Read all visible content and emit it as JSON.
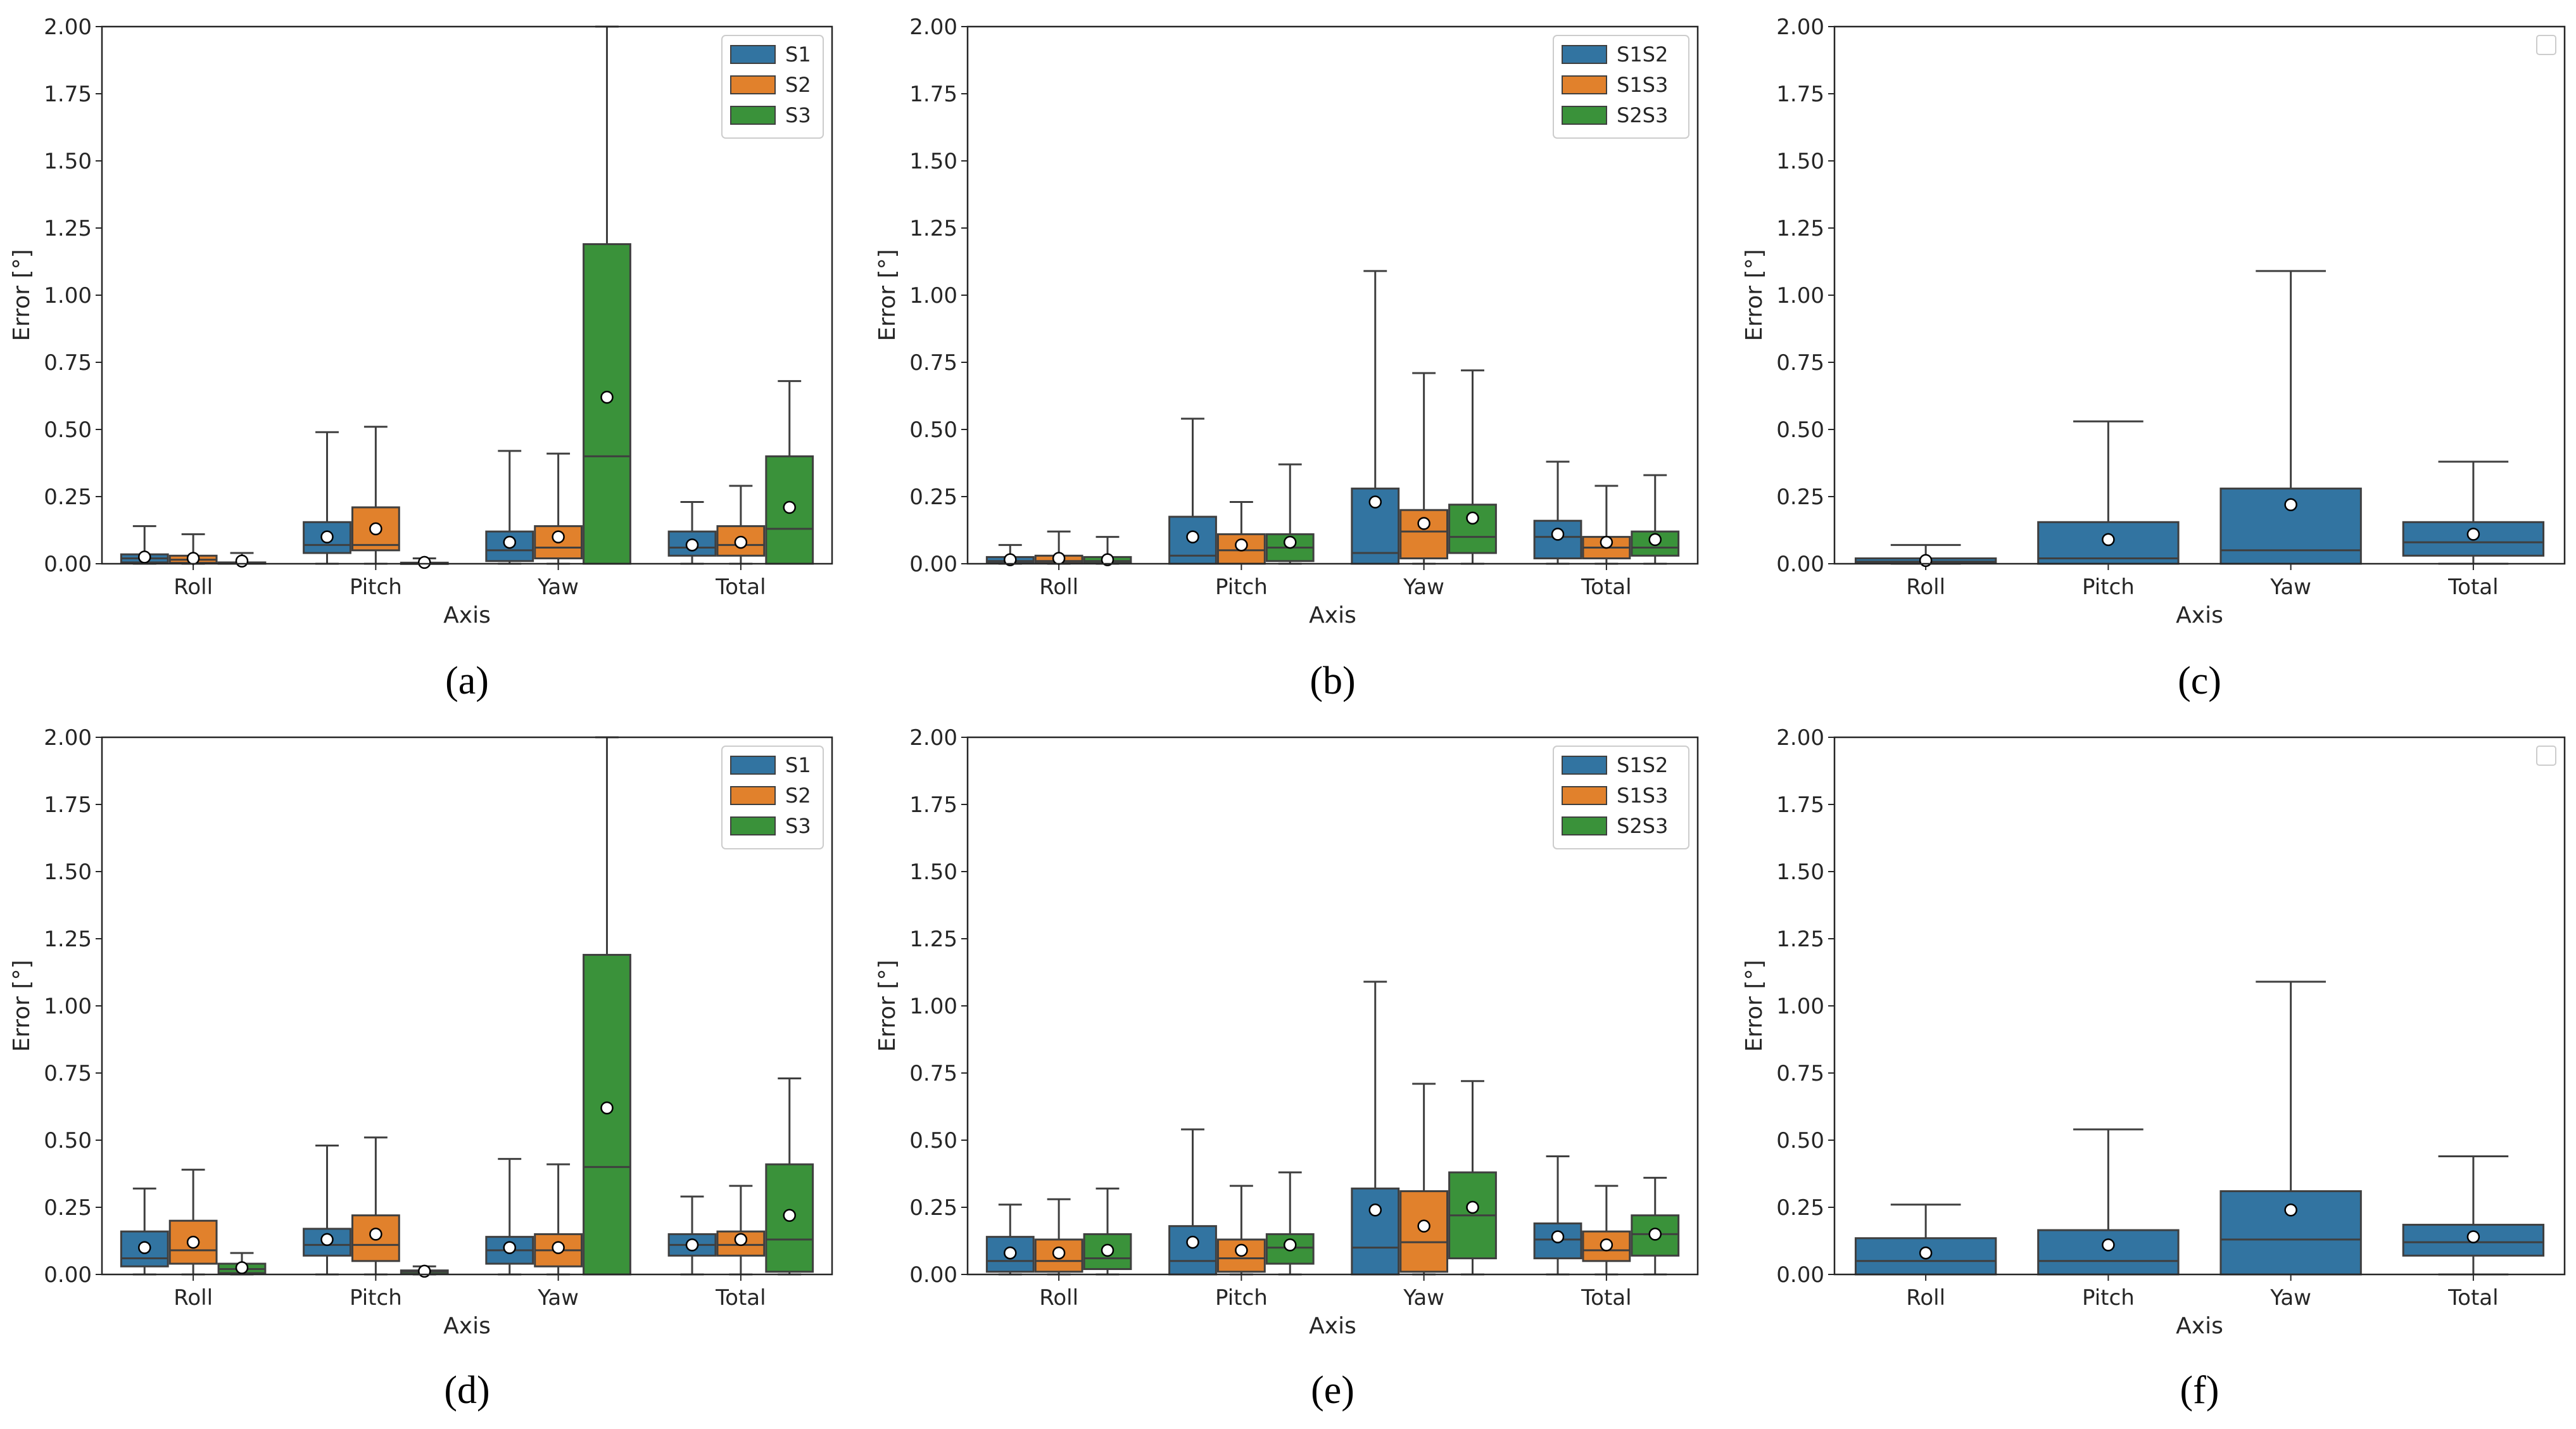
{
  "colors": {
    "S1": "#3274a1",
    "S2": "#e1812c",
    "S3": "#3a923a",
    "line": "#3f3f3f"
  },
  "chart_data": [
    {
      "type": "box",
      "caption": "(a)",
      "xlabel": "Axis",
      "ylabel": "Error [°]",
      "ylim": [
        0,
        2.0
      ],
      "yticks": [
        "0.00",
        "0.25",
        "0.50",
        "0.75",
        "1.00",
        "1.25",
        "1.50",
        "1.75",
        "2.00"
      ],
      "categories": [
        "Roll",
        "Pitch",
        "Yaw",
        "Total"
      ],
      "legend": {
        "position": "top-right",
        "entries": [
          "S1",
          "S2",
          "S3"
        ]
      },
      "series": [
        {
          "name": "S1",
          "boxes": [
            {
              "q1": 0.005,
              "median": 0.02,
              "q3": 0.035,
              "whislo": 0.0,
              "whishi": 0.14,
              "mean": 0.025
            },
            {
              "q1": 0.04,
              "median": 0.07,
              "q3": 0.155,
              "whislo": 0.0,
              "whishi": 0.49,
              "mean": 0.1
            },
            {
              "q1": 0.01,
              "median": 0.05,
              "q3": 0.12,
              "whislo": 0.0,
              "whishi": 0.42,
              "mean": 0.08
            },
            {
              "q1": 0.03,
              "median": 0.06,
              "q3": 0.12,
              "whislo": 0.0,
              "whishi": 0.23,
              "mean": 0.07
            }
          ]
        },
        {
          "name": "S2",
          "boxes": [
            {
              "q1": 0.003,
              "median": 0.015,
              "q3": 0.03,
              "whislo": 0.0,
              "whishi": 0.11,
              "mean": 0.02
            },
            {
              "q1": 0.05,
              "median": 0.07,
              "q3": 0.21,
              "whislo": 0.0,
              "whishi": 0.51,
              "mean": 0.13
            },
            {
              "q1": 0.02,
              "median": 0.06,
              "q3": 0.14,
              "whislo": 0.0,
              "whishi": 0.41,
              "mean": 0.1
            },
            {
              "q1": 0.03,
              "median": 0.07,
              "q3": 0.14,
              "whislo": 0.0,
              "whishi": 0.29,
              "mean": 0.08
            }
          ]
        },
        {
          "name": "S3",
          "boxes": [
            {
              "q1": 0.0,
              "median": 0.002,
              "q3": 0.005,
              "whislo": 0.0,
              "whishi": 0.04,
              "mean": 0.01
            },
            {
              "q1": 0.0,
              "median": 0.002,
              "q3": 0.004,
              "whislo": 0.0,
              "whishi": 0.02,
              "mean": 0.005
            },
            {
              "q1": 0.0,
              "median": 0.4,
              "q3": 1.19,
              "whislo": 0.0,
              "whishi": 2.0,
              "mean": 0.62
            },
            {
              "q1": 0.0,
              "median": 0.13,
              "q3": 0.4,
              "whislo": 0.0,
              "whishi": 0.68,
              "mean": 0.21
            }
          ]
        }
      ]
    },
    {
      "type": "box",
      "caption": "(b)",
      "xlabel": "Axis",
      "ylabel": "Error [°]",
      "ylim": [
        0,
        2.0
      ],
      "yticks": [
        "0.00",
        "0.25",
        "0.50",
        "0.75",
        "1.00",
        "1.25",
        "1.50",
        "1.75",
        "2.00"
      ],
      "categories": [
        "Roll",
        "Pitch",
        "Yaw",
        "Total"
      ],
      "legend": {
        "position": "top-right",
        "entries": [
          "S1S2",
          "S1S3",
          "S2S3"
        ]
      },
      "series": [
        {
          "name": "S1S2",
          "boxes": [
            {
              "q1": 0.003,
              "median": 0.01,
              "q3": 0.025,
              "whislo": 0.0,
              "whishi": 0.07,
              "mean": 0.015
            },
            {
              "q1": 0.0,
              "median": 0.03,
              "q3": 0.175,
              "whislo": 0.0,
              "whishi": 0.54,
              "mean": 0.1
            },
            {
              "q1": 0.0,
              "median": 0.04,
              "q3": 0.28,
              "whislo": 0.0,
              "whishi": 1.09,
              "mean": 0.23
            },
            {
              "q1": 0.02,
              "median": 0.1,
              "q3": 0.16,
              "whislo": 0.0,
              "whishi": 0.38,
              "mean": 0.11
            }
          ]
        },
        {
          "name": "S1S3",
          "boxes": [
            {
              "q1": 0.003,
              "median": 0.01,
              "q3": 0.03,
              "whislo": 0.0,
              "whishi": 0.12,
              "mean": 0.02
            },
            {
              "q1": 0.0,
              "median": 0.05,
              "q3": 0.11,
              "whislo": 0.0,
              "whishi": 0.23,
              "mean": 0.07
            },
            {
              "q1": 0.02,
              "median": 0.12,
              "q3": 0.2,
              "whislo": 0.0,
              "whishi": 0.71,
              "mean": 0.15
            },
            {
              "q1": 0.02,
              "median": 0.06,
              "q3": 0.1,
              "whislo": 0.0,
              "whishi": 0.29,
              "mean": 0.08
            }
          ]
        },
        {
          "name": "S2S3",
          "boxes": [
            {
              "q1": 0.003,
              "median": 0.01,
              "q3": 0.025,
              "whislo": 0.0,
              "whishi": 0.1,
              "mean": 0.015
            },
            {
              "q1": 0.01,
              "median": 0.06,
              "q3": 0.11,
              "whislo": 0.0,
              "whishi": 0.37,
              "mean": 0.08
            },
            {
              "q1": 0.04,
              "median": 0.1,
              "q3": 0.22,
              "whislo": 0.0,
              "whishi": 0.72,
              "mean": 0.17
            },
            {
              "q1": 0.03,
              "median": 0.06,
              "q3": 0.12,
              "whislo": 0.0,
              "whishi": 0.33,
              "mean": 0.09
            }
          ]
        }
      ]
    },
    {
      "type": "box",
      "caption": "(c)",
      "xlabel": "Axis",
      "ylabel": "Error [°]",
      "ylim": [
        0,
        2.0
      ],
      "yticks": [
        "0.00",
        "0.25",
        "0.50",
        "0.75",
        "1.00",
        "1.25",
        "1.50",
        "1.75",
        "2.00"
      ],
      "categories": [
        "Roll",
        "Pitch",
        "Yaw",
        "Total"
      ],
      "legend": {
        "position": "top-right",
        "entries": []
      },
      "series": [
        {
          "name": "S1",
          "boxes": [
            {
              "q1": 0.002,
              "median": 0.008,
              "q3": 0.02,
              "whislo": 0.0,
              "whishi": 0.07,
              "mean": 0.012
            },
            {
              "q1": 0.0,
              "median": 0.02,
              "q3": 0.155,
              "whislo": 0.0,
              "whishi": 0.53,
              "mean": 0.09
            },
            {
              "q1": 0.0,
              "median": 0.05,
              "q3": 0.28,
              "whislo": 0.0,
              "whishi": 1.09,
              "mean": 0.22
            },
            {
              "q1": 0.03,
              "median": 0.08,
              "q3": 0.155,
              "whislo": 0.0,
              "whishi": 0.38,
              "mean": 0.11
            }
          ]
        }
      ]
    },
    {
      "type": "box",
      "caption": "(d)",
      "xlabel": "Axis",
      "ylabel": "Error [°]",
      "ylim": [
        0,
        2.0
      ],
      "yticks": [
        "0.00",
        "0.25",
        "0.50",
        "0.75",
        "1.00",
        "1.25",
        "1.50",
        "1.75",
        "2.00"
      ],
      "categories": [
        "Roll",
        "Pitch",
        "Yaw",
        "Total"
      ],
      "legend": {
        "position": "top-right",
        "entries": [
          "S1",
          "S2",
          "S3"
        ]
      },
      "series": [
        {
          "name": "S1",
          "boxes": [
            {
              "q1": 0.03,
              "median": 0.06,
              "q3": 0.16,
              "whislo": 0.0,
              "whishi": 0.32,
              "mean": 0.1
            },
            {
              "q1": 0.07,
              "median": 0.11,
              "q3": 0.17,
              "whislo": 0.0,
              "whishi": 0.48,
              "mean": 0.13
            },
            {
              "q1": 0.04,
              "median": 0.09,
              "q3": 0.14,
              "whislo": 0.0,
              "whishi": 0.43,
              "mean": 0.1
            },
            {
              "q1": 0.07,
              "median": 0.11,
              "q3": 0.15,
              "whislo": 0.0,
              "whishi": 0.29,
              "mean": 0.11
            }
          ]
        },
        {
          "name": "S2",
          "boxes": [
            {
              "q1": 0.04,
              "median": 0.09,
              "q3": 0.2,
              "whislo": 0.0,
              "whishi": 0.39,
              "mean": 0.12
            },
            {
              "q1": 0.05,
              "median": 0.11,
              "q3": 0.22,
              "whislo": 0.0,
              "whishi": 0.51,
              "mean": 0.15
            },
            {
              "q1": 0.03,
              "median": 0.09,
              "q3": 0.15,
              "whislo": 0.0,
              "whishi": 0.41,
              "mean": 0.1
            },
            {
              "q1": 0.07,
              "median": 0.11,
              "q3": 0.16,
              "whislo": 0.0,
              "whishi": 0.33,
              "mean": 0.13
            }
          ]
        },
        {
          "name": "S3",
          "boxes": [
            {
              "q1": 0.005,
              "median": 0.02,
              "q3": 0.04,
              "whislo": 0.0,
              "whishi": 0.08,
              "mean": 0.025
            },
            {
              "q1": 0.002,
              "median": 0.01,
              "q3": 0.015,
              "whislo": 0.0,
              "whishi": 0.03,
              "mean": 0.012
            },
            {
              "q1": 0.0,
              "median": 0.4,
              "q3": 1.19,
              "whislo": 0.0,
              "whishi": 2.0,
              "mean": 0.62
            },
            {
              "q1": 0.01,
              "median": 0.13,
              "q3": 0.41,
              "whislo": 0.0,
              "whishi": 0.73,
              "mean": 0.22
            }
          ]
        }
      ]
    },
    {
      "type": "box",
      "caption": "(e)",
      "xlabel": "Axis",
      "ylabel": "Error [°]",
      "ylim": [
        0,
        2.0
      ],
      "yticks": [
        "0.00",
        "0.25",
        "0.50",
        "0.75",
        "1.00",
        "1.25",
        "1.50",
        "1.75",
        "2.00"
      ],
      "categories": [
        "Roll",
        "Pitch",
        "Yaw",
        "Total"
      ],
      "legend": {
        "position": "top-right",
        "entries": [
          "S1S2",
          "S1S3",
          "S2S3"
        ]
      },
      "series": [
        {
          "name": "S1S2",
          "boxes": [
            {
              "q1": 0.01,
              "median": 0.05,
              "q3": 0.14,
              "whislo": 0.0,
              "whishi": 0.26,
              "mean": 0.08
            },
            {
              "q1": 0.0,
              "median": 0.05,
              "q3": 0.18,
              "whislo": 0.0,
              "whishi": 0.54,
              "mean": 0.12
            },
            {
              "q1": 0.0,
              "median": 0.1,
              "q3": 0.32,
              "whislo": 0.0,
              "whishi": 1.09,
              "mean": 0.24
            },
            {
              "q1": 0.06,
              "median": 0.13,
              "q3": 0.19,
              "whislo": 0.0,
              "whishi": 0.44,
              "mean": 0.14
            }
          ]
        },
        {
          "name": "S1S3",
          "boxes": [
            {
              "q1": 0.01,
              "median": 0.05,
              "q3": 0.13,
              "whislo": 0.0,
              "whishi": 0.28,
              "mean": 0.08
            },
            {
              "q1": 0.01,
              "median": 0.06,
              "q3": 0.13,
              "whislo": 0.0,
              "whishi": 0.33,
              "mean": 0.09
            },
            {
              "q1": 0.01,
              "median": 0.12,
              "q3": 0.31,
              "whislo": 0.0,
              "whishi": 0.71,
              "mean": 0.18
            },
            {
              "q1": 0.05,
              "median": 0.09,
              "q3": 0.16,
              "whislo": 0.0,
              "whishi": 0.33,
              "mean": 0.11
            }
          ]
        },
        {
          "name": "S2S3",
          "boxes": [
            {
              "q1": 0.02,
              "median": 0.06,
              "q3": 0.15,
              "whislo": 0.0,
              "whishi": 0.32,
              "mean": 0.09
            },
            {
              "q1": 0.04,
              "median": 0.1,
              "q3": 0.15,
              "whislo": 0.0,
              "whishi": 0.38,
              "mean": 0.11
            },
            {
              "q1": 0.06,
              "median": 0.22,
              "q3": 0.38,
              "whislo": 0.0,
              "whishi": 0.72,
              "mean": 0.25
            },
            {
              "q1": 0.07,
              "median": 0.15,
              "q3": 0.22,
              "whislo": 0.0,
              "whishi": 0.36,
              "mean": 0.15
            }
          ]
        }
      ]
    },
    {
      "type": "box",
      "caption": "(f)",
      "xlabel": "Axis",
      "ylabel": "Error [°]",
      "ylim": [
        0,
        2.0
      ],
      "yticks": [
        "0.00",
        "0.25",
        "0.50",
        "0.75",
        "1.00",
        "1.25",
        "1.50",
        "1.75",
        "2.00"
      ],
      "categories": [
        "Roll",
        "Pitch",
        "Yaw",
        "Total"
      ],
      "legend": {
        "position": "top-right",
        "entries": []
      },
      "series": [
        {
          "name": "S1",
          "boxes": [
            {
              "q1": 0.0,
              "median": 0.05,
              "q3": 0.135,
              "whislo": 0.0,
              "whishi": 0.26,
              "mean": 0.08
            },
            {
              "q1": 0.0,
              "median": 0.05,
              "q3": 0.165,
              "whislo": 0.0,
              "whishi": 0.54,
              "mean": 0.11
            },
            {
              "q1": 0.0,
              "median": 0.13,
              "q3": 0.31,
              "whislo": 0.0,
              "whishi": 1.09,
              "mean": 0.24
            },
            {
              "q1": 0.07,
              "median": 0.12,
              "q3": 0.185,
              "whislo": 0.0,
              "whishi": 0.44,
              "mean": 0.14
            }
          ]
        }
      ]
    }
  ]
}
